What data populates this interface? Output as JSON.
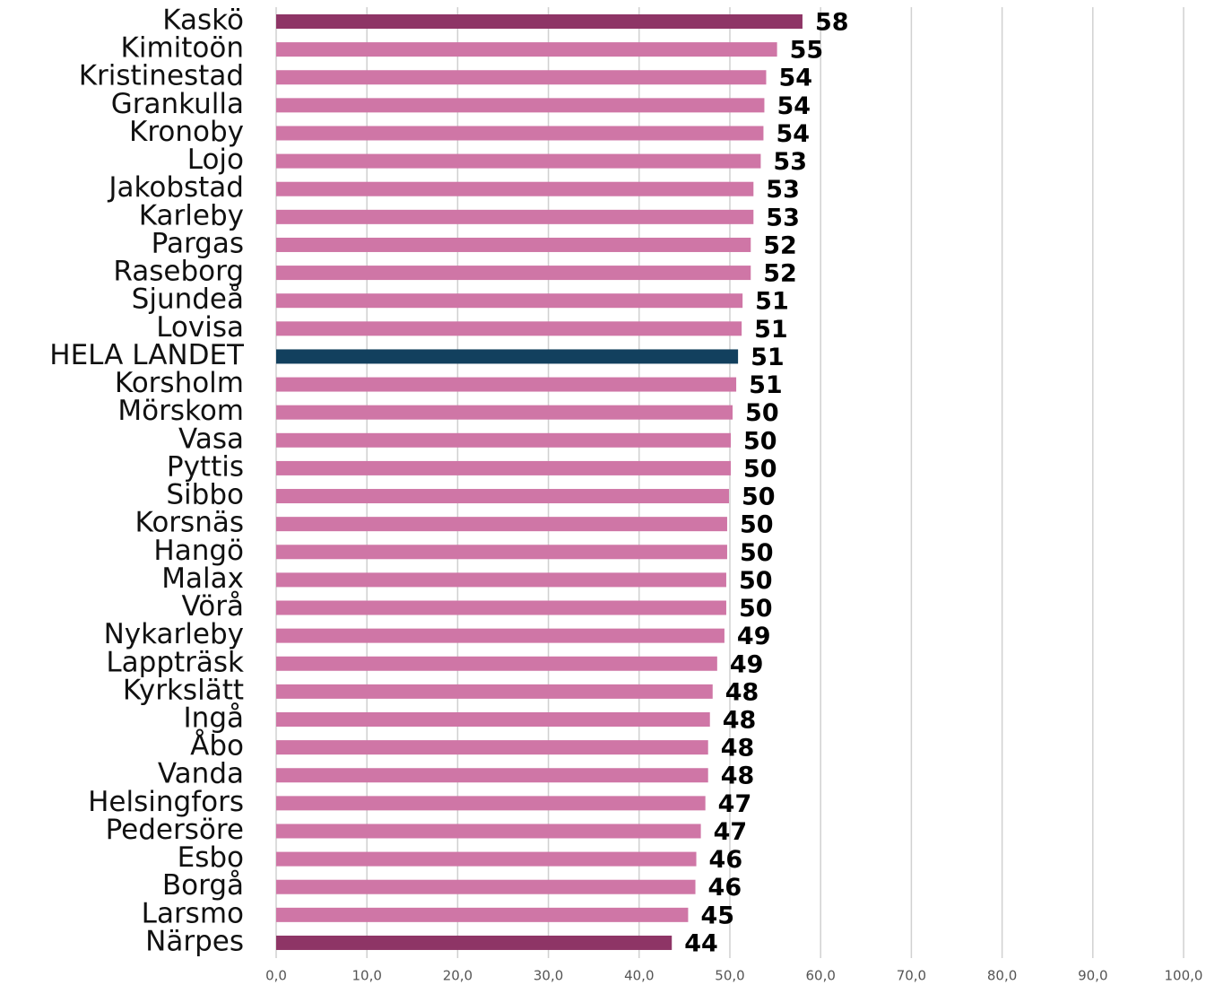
{
  "chart_data": {
    "type": "barh",
    "categories": [
      "Kaskö",
      "Kimitoön",
      "Kristinestad",
      "Grankulla",
      "Kronoby",
      "Lojo",
      "Jakobstad",
      "Karleby",
      "Pargas",
      "Raseborg",
      "Sjundeå",
      "Lovisa",
      "HELA LANDET",
      "Korsholm",
      "Mörskom",
      "Vasa",
      "Pyttis",
      "Sibbo",
      "Korsnäs",
      "Hangö",
      "Malax",
      "Vörå",
      "Nykarleby",
      "Lappträsk",
      "Kyrkslätt",
      "Ingå",
      "Åbo",
      "Vanda",
      "Helsingfors",
      "Pedersöre",
      "Esbo",
      "Borgå",
      "Larsmo",
      "Närpes"
    ],
    "values": [
      58.0,
      55.2,
      54.0,
      53.8,
      53.7,
      53.4,
      52.6,
      52.6,
      52.3,
      52.3,
      51.4,
      51.3,
      50.9,
      50.7,
      50.3,
      50.1,
      50.1,
      49.9,
      49.7,
      49.7,
      49.6,
      49.6,
      49.4,
      48.6,
      48.1,
      47.8,
      47.6,
      47.6,
      47.3,
      46.8,
      46.3,
      46.2,
      45.4,
      43.6
    ],
    "value_labels": [
      "58",
      "55",
      "54",
      "54",
      "54",
      "53",
      "53",
      "53",
      "52",
      "52",
      "51",
      "51",
      "51",
      "51",
      "50",
      "50",
      "50",
      "50",
      "50",
      "50",
      "50",
      "50",
      "49",
      "49",
      "48",
      "48",
      "48",
      "48",
      "47",
      "47",
      "46",
      "46",
      "45",
      "44"
    ],
    "colors": [
      "#8e3566",
      "#cf76a6",
      "#cf76a6",
      "#cf76a6",
      "#cf76a6",
      "#cf76a6",
      "#cf76a6",
      "#cf76a6",
      "#cf76a6",
      "#cf76a6",
      "#cf76a6",
      "#cf76a6",
      "#12405e",
      "#cf76a6",
      "#cf76a6",
      "#cf76a6",
      "#cf76a6",
      "#cf76a6",
      "#cf76a6",
      "#cf76a6",
      "#cf76a6",
      "#cf76a6",
      "#cf76a6",
      "#cf76a6",
      "#cf76a6",
      "#cf76a6",
      "#cf76a6",
      "#cf76a6",
      "#cf76a6",
      "#cf76a6",
      "#cf76a6",
      "#cf76a6",
      "#cf76a6",
      "#8e3566"
    ],
    "xlim": [
      0,
      100
    ],
    "xticks": [
      {
        "value": 0,
        "label": "0,0"
      },
      {
        "value": 10,
        "label": "10,0"
      },
      {
        "value": 20,
        "label": "20,0"
      },
      {
        "value": 30,
        "label": "30,0"
      },
      {
        "value": 40,
        "label": "40,0"
      },
      {
        "value": 50,
        "label": "50,0"
      },
      {
        "value": 60,
        "label": "60,0"
      },
      {
        "value": 70,
        "label": "70,0"
      },
      {
        "value": 80,
        "label": "80,0"
      },
      {
        "value": 90,
        "label": "90,0"
      },
      {
        "value": 100,
        "label": "100,0"
      }
    ],
    "grid": true
  }
}
